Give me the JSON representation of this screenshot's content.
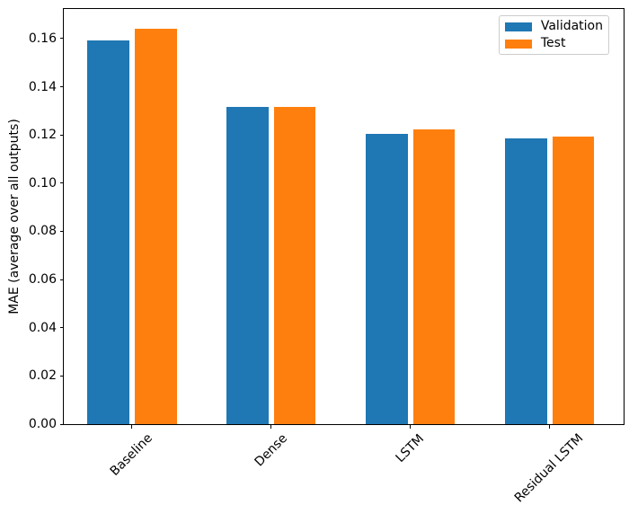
{
  "chart_data": {
    "type": "bar",
    "title": "",
    "xlabel": "",
    "ylabel": "MAE (average over all outputs)",
    "categories": [
      "Baseline",
      "Dense",
      "LSTM",
      "Residual LSTM"
    ],
    "series": [
      {
        "name": "Validation",
        "color": "#1f77b4",
        "offset": -0.17,
        "values": [
          0.1593,
          0.1315,
          0.1204,
          0.1186
        ]
      },
      {
        "name": "Test",
        "color": "#ff7f0e",
        "offset": 0.17,
        "values": [
          0.164,
          0.1315,
          0.1222,
          0.1194
        ]
      }
    ],
    "bar_width": 0.3,
    "xlim": [
      -0.49,
      3.53
    ],
    "ylim": [
      0,
      0.1723
    ],
    "yticks": [
      0.0,
      0.02,
      0.04,
      0.06,
      0.08,
      0.1,
      0.12,
      0.14,
      0.16
    ],
    "ytick_format_decimals": 2,
    "xtick_rotation_deg": 45,
    "grid": false,
    "legend": {
      "position": "upper right",
      "entries": [
        "Validation",
        "Test"
      ]
    }
  },
  "colors": {
    "spine": "#000000",
    "tick_text": "#000000",
    "legend_border": "#cccccc",
    "background": "#ffffff"
  }
}
